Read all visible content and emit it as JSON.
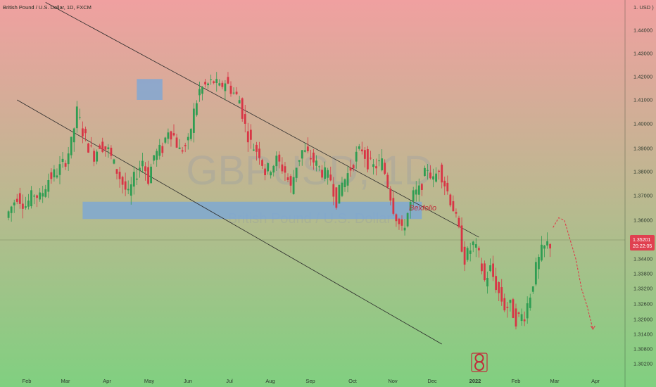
{
  "symbol_title": "British Pound / U.S. Dollar, 1D, FXCM",
  "brand_label": "Bexfolio",
  "watermark": {
    "ticker": "GBPUSD, 1D",
    "name": "British Pound / U.S. Dollar"
  },
  "current_price": {
    "price": "1.35201",
    "countdown": "20:22:05",
    "color": "#e04050"
  },
  "colors": {
    "background_top": "#f0a0a0",
    "background_bottom": "#80d080",
    "candle_up": "#2f9d52",
    "candle_down": "#d83545",
    "zone_fill": "#7aa6d8",
    "trendline": "#2a2a2a",
    "projection": "#e03545"
  },
  "chart_data": {
    "type": "candlestick",
    "title": "British Pound / U.S. Dollar, 1D, FXCM",
    "y_axis_unit": "1. USD )",
    "y_ticks": [
      "1.44000",
      "1.43000",
      "1.42000",
      "1.41000",
      "1.40000",
      "1.39000",
      "1.38000",
      "1.37000",
      "1.36000",
      "1.34400",
      "1.33800",
      "1.33200",
      "1.32600",
      "1.32000",
      "1.31400",
      "1.30800",
      "1.30200"
    ],
    "x_ticks": [
      "Feb",
      "Mar",
      "Apr",
      "May",
      "Jun",
      "Jul",
      "Aug",
      "Sep",
      "Oct",
      "Nov",
      "Dec",
      "2022",
      "Feb",
      "Mar",
      "Apr"
    ],
    "ylim": [
      1.3,
      1.452
    ],
    "grid": false,
    "series_shape": [
      [
        2.0,
        1.361
      ],
      [
        6.0,
        1.37
      ],
      [
        9.0,
        1.366
      ],
      [
        12.0,
        1.371
      ],
      [
        14.0,
        1.369
      ],
      [
        17.0,
        1.377
      ],
      [
        20.0,
        1.38
      ],
      [
        23.0,
        1.385
      ],
      [
        25.0,
        1.392
      ],
      [
        27.0,
        1.405
      ],
      [
        29.0,
        1.397
      ],
      [
        31.0,
        1.391
      ],
      [
        33.0,
        1.387
      ],
      [
        35.0,
        1.392
      ],
      [
        38.0,
        1.389
      ],
      [
        40.0,
        1.383
      ],
      [
        43.0,
        1.375
      ],
      [
        45.0,
        1.37
      ],
      [
        47.0,
        1.377
      ],
      [
        50.0,
        1.385
      ],
      [
        52.0,
        1.377
      ],
      [
        54.0,
        1.387
      ],
      [
        57.0,
        1.39
      ],
      [
        59.0,
        1.398
      ],
      [
        61.0,
        1.395
      ],
      [
        63.0,
        1.389
      ],
      [
        66.0,
        1.392
      ],
      [
        68.0,
        1.405
      ],
      [
        70.0,
        1.414
      ],
      [
        72.0,
        1.416
      ],
      [
        75.0,
        1.418
      ],
      [
        77.0,
        1.415
      ],
      [
        79.0,
        1.418
      ],
      [
        82.0,
        1.413
      ],
      [
        84.0,
        1.41
      ],
      [
        86.0,
        1.399
      ],
      [
        88.0,
        1.392
      ],
      [
        91.0,
        1.388
      ],
      [
        93.0,
        1.38
      ],
      [
        95.0,
        1.382
      ],
      [
        97.0,
        1.385
      ],
      [
        100.0,
        1.38
      ],
      [
        102.0,
        1.373
      ],
      [
        104.0,
        1.383
      ],
      [
        106.0,
        1.389
      ],
      [
        109.0,
        1.386
      ],
      [
        111.0,
        1.383
      ],
      [
        113.0,
        1.38
      ],
      [
        116.0,
        1.377
      ],
      [
        118.0,
        1.368
      ],
      [
        120.0,
        1.375
      ],
      [
        122.0,
        1.379
      ],
      [
        125.0,
        1.387
      ],
      [
        127.0,
        1.39
      ],
      [
        129.0,
        1.384
      ],
      [
        131.0,
        1.382
      ],
      [
        134.0,
        1.384
      ],
      [
        136.0,
        1.375
      ],
      [
        138.0,
        1.365
      ],
      [
        141.0,
        1.355
      ],
      [
        143.0,
        1.363
      ],
      [
        145.0,
        1.37
      ],
      [
        147.0,
        1.372
      ],
      [
        150.0,
        1.382
      ],
      [
        152.0,
        1.376
      ],
      [
        154.0,
        1.382
      ],
      [
        156.0,
        1.375
      ],
      [
        159.0,
        1.365
      ],
      [
        161.0,
        1.355
      ],
      [
        163.0,
        1.344
      ],
      [
        166.0,
        1.35
      ],
      [
        168.0,
        1.345
      ],
      [
        170.0,
        1.335
      ],
      [
        172.0,
        1.34
      ],
      [
        175.0,
        1.33
      ],
      [
        177.0,
        1.325
      ],
      [
        179.0,
        1.325
      ],
      [
        181.0,
        1.32
      ],
      [
        184.0,
        1.322
      ],
      [
        186.0,
        1.33
      ],
      [
        188.0,
        1.34
      ],
      [
        190.0,
        1.347
      ],
      [
        192.0,
        1.35
      ]
    ],
    "projection": [
      [
        193,
        1.357
      ],
      [
        195,
        1.361
      ],
      [
        197,
        1.36
      ],
      [
        199,
        1.352
      ],
      [
        201,
        1.344
      ],
      [
        203,
        1.332
      ],
      [
        205,
        1.325
      ],
      [
        207,
        1.316
      ]
    ],
    "projection_unit_note": "",
    "price_zones": [
      {
        "from": 1.3605,
        "to": 1.3675,
        "x_from": 28,
        "x_to": 147
      },
      {
        "from": 1.41,
        "to": 1.419,
        "x_from": 47,
        "x_to": 56
      }
    ],
    "channel_lines": [
      {
        "x1": 15,
        "y1": 1.452,
        "x2": 167,
        "y2": 1.353
      },
      {
        "x1": 5,
        "y1": 1.41,
        "x2": 154,
        "y2": 1.31
      }
    ],
    "last_price": 1.35201
  }
}
